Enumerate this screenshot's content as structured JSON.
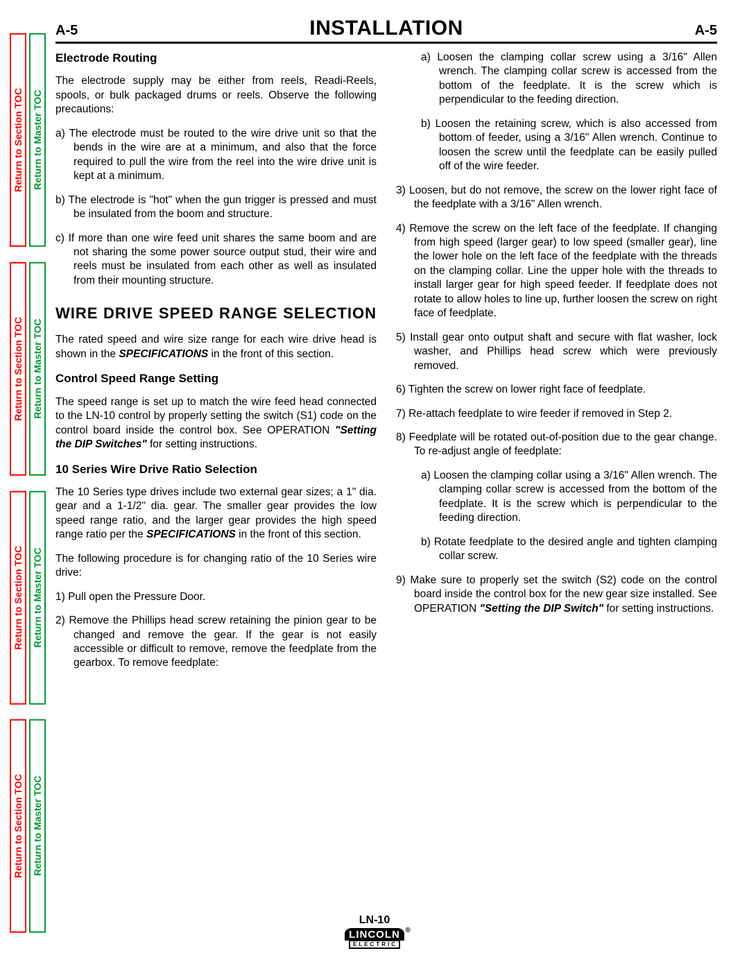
{
  "side_tabs": {
    "section_label": "Return to Section TOC",
    "master_label": "Return to Master TOC",
    "section_color": "#ff0000",
    "master_color": "#009933",
    "repeat": 4
  },
  "header": {
    "left": "A-5",
    "center": "INSTALLATION",
    "right": "A-5"
  },
  "h_electrode": "Electrode Routing",
  "p_electrode_intro": "The electrode supply may be either from reels, Readi-Reels, spools, or bulk packaged drums or reels. Observe the following precautions:",
  "p_elec_a": "a)  The electrode must be routed to the wire drive unit so that the bends in the wire are at a minimum, and also that the force required to pull the wire from the reel into the wire drive unit is kept at a minimum.",
  "p_elec_b": "b)  The electrode is \"hot\" when the gun trigger is pressed and must be insulated from the boom and structure.",
  "p_elec_c": "c)  If more than one wire feed unit shares the same boom and are not sharing the some power source output stud, their wire and reels must be insulated from each other as well as insulated from their mounting structure.",
  "h_wire_drive": "WIRE DRIVE SPEED RANGE SELECTION",
  "p_wire_1a": "The rated speed and wire size range for each wire drive head is shown in the ",
  "p_wire_1b": " in the front of this section.",
  "h_control": "Control Speed Range Setting",
  "p_control_1a": "The speed range is set up to match the wire feed head connected to the LN-10 control by properly setting the switch (S1) code on the control board inside the control box.  See OPERATION ",
  "p_control_1b": " for setting instructions.",
  "h_10series": "10 Series Wire Drive Ratio Selection",
  "p_10_1a": "The 10 Series type drives include two external gear sizes; a 1\" dia. gear and a 1-1/2\" dia. gear.  The smaller gear provides the low speed range ratio, and the larger gear provides the high speed range ratio per the ",
  "p_10_1b": " in the front of this section.",
  "p_10_2": "The following procedure is for changing ratio of the 10 Series wire drive:",
  "p_s1": "1)  Pull open the Pressure Door.",
  "p_s2": "2)  Remove the Phillips head screw retaining the pinion gear to be changed and remove the gear.  If the gear is not easily accessible or difficult to remove, remove the feedplate from the gearbox.  To remove feedplate:",
  "p_s2a": "a)  Loosen the clamping collar screw using a 3/16\" Allen wrench.  The clamping collar screw is accessed from the bottom of the feedplate.  It is the screw which is perpendicular to the feeding direction.",
  "p_s2b": "b)  Loosen the retaining screw, which is also accessed from bottom of feeder, using a 3/16\" Allen wrench.  Continue to loosen the screw until the feedplate can be easily pulled off of the wire feeder.",
  "p_s3": "3)  Loosen, but do not remove, the screw on the lower right face of the feedplate with a 3/16\" Allen wrench.",
  "p_s4": "4)  Remove the screw on the left face of the feedplate.  If changing from high speed (larger gear) to low speed (smaller gear), line the lower hole on the left face of the feedplate with the threads on the clamping collar.  Line the upper hole with the threads to install larger gear for high speed feeder.  If feedplate does not rotate to allow holes to line up, further loosen the screw on right face of feedplate.",
  "p_s5": "5)  Install gear onto output shaft and secure with flat washer, lock washer, and Phillips head screw which were previously removed.",
  "p_s6": "6)  Tighten the screw on lower right face of feedplate.",
  "p_s7": "7)  Re-attach feedplate to wire feeder if removed in Step 2.",
  "p_s8": "8)  Feedplate will be rotated out-of-position due to the gear change.  To re-adjust angle of feedplate:",
  "p_s8a": "a)  Loosen the clamping collar using a 3/16\" Allen wrench.  The clamping collar screw is accessed from the bottom of the feedplate.  It is the screw which is perpendicular to the feeding direction.",
  "p_s8b": "b)  Rotate feedplate to the desired angle and tighten clamping collar screw.",
  "p_s9a": "9)  Make sure to properly set the switch (S2) code on the control board inside the control box for the new gear size installed. See OPERATION ",
  "p_s9b": " for setting instructions.",
  "spec_word": "SPECIFICATIONS",
  "dip_switches": "\"Setting the DIP Switches\"",
  "dip_switch": "\"Setting the DIP Switch\"",
  "footer": {
    "model": "LN-10",
    "brand_top": "LINCOLN",
    "brand_bottom": "ELECTRIC"
  }
}
